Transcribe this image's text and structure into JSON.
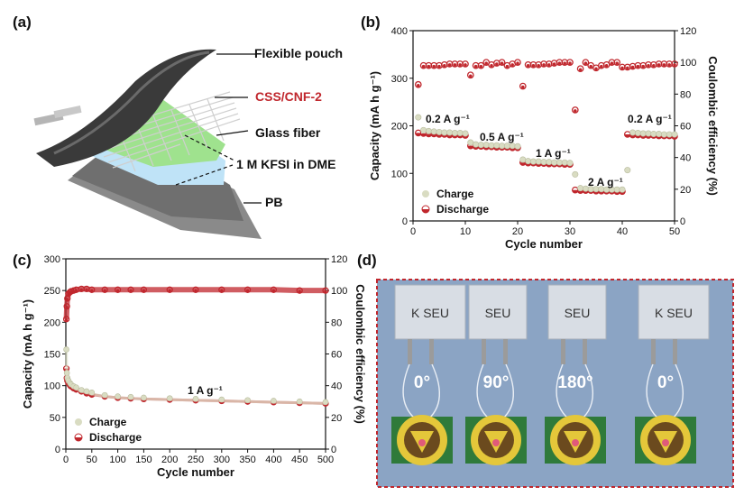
{
  "panels": {
    "a": {
      "letter": "(a)",
      "layers": [
        "Flexible pouch",
        "CSS/CNF-2",
        "Glass fiber",
        "1 M KFSI in DME",
        "PB"
      ]
    },
    "b": {
      "letter": "(b)"
    },
    "c": {
      "letter": "(c)"
    },
    "d": {
      "letter": "(d)",
      "photos": [
        {
          "handwriting": "K SEU",
          "angle": "0°"
        },
        {
          "handwriting": "SEU",
          "angle": "90°"
        },
        {
          "handwriting": "SEU",
          "angle": "180°"
        },
        {
          "handwriting": "K SEU",
          "angle": "0°"
        }
      ],
      "seal_text": "SOUTHEAST UNIVERSITY"
    }
  },
  "colors": {
    "discharge": "#c0272d",
    "charge": "#d9dcc2",
    "frame_dashed": "#c0272d",
    "text_red": "#c0272d"
  },
  "chart_data": [
    {
      "id": "b",
      "type": "scatter",
      "xlabel": "Cycle number",
      "ylabel": "Capacity (mA h g⁻¹)",
      "y2label": "Coulombic efficiency (%)",
      "xlim": [
        0,
        50
      ],
      "ylim": [
        0,
        400
      ],
      "y2lim": [
        0,
        120
      ],
      "xticks": [
        0,
        10,
        20,
        30,
        40,
        50
      ],
      "yticks": [
        0,
        100,
        200,
        300,
        400
      ],
      "y2ticks": [
        0,
        20,
        40,
        60,
        80,
        100,
        120
      ],
      "legend": [
        "Charge",
        "Discharge"
      ],
      "legend_position": "bottom-left",
      "annotations": [
        "0.2 A g⁻¹",
        "0.5 A g⁻¹",
        "1 A g⁻¹",
        "2 A g⁻¹",
        "0.2 A g⁻¹"
      ],
      "series": [
        {
          "name": "Discharge",
          "axis": "left",
          "x": [
            1,
            2,
            3,
            4,
            5,
            6,
            7,
            8,
            9,
            10,
            11,
            12,
            13,
            14,
            15,
            16,
            17,
            18,
            19,
            20,
            21,
            22,
            23,
            24,
            25,
            26,
            27,
            28,
            29,
            30,
            31,
            32,
            33,
            34,
            35,
            36,
            37,
            38,
            39,
            40,
            41,
            42,
            43,
            44,
            45,
            46,
            47,
            48,
            49,
            50
          ],
          "values": [
            185,
            184,
            183,
            183,
            182,
            182,
            181,
            181,
            181,
            180,
            158,
            157,
            157,
            156,
            156,
            155,
            155,
            155,
            154,
            154,
            123,
            122,
            122,
            121,
            121,
            120,
            120,
            120,
            119,
            119,
            65,
            64,
            64,
            64,
            63,
            63,
            63,
            63,
            62,
            62,
            182,
            181,
            181,
            180,
            180,
            180,
            179,
            179,
            179,
            178
          ]
        },
        {
          "name": "Charge",
          "axis": "left",
          "x": [
            1,
            2,
            3,
            4,
            5,
            6,
            7,
            8,
            9,
            10,
            11,
            12,
            13,
            14,
            15,
            16,
            17,
            18,
            19,
            20,
            21,
            22,
            23,
            24,
            25,
            26,
            27,
            28,
            29,
            30,
            31,
            32,
            33,
            34,
            35,
            36,
            37,
            38,
            39,
            40,
            41,
            42,
            43,
            44,
            45,
            46,
            47,
            48,
            49,
            50
          ],
          "values": [
            215,
            188,
            186,
            185,
            184,
            183,
            183,
            182,
            182,
            181,
            162,
            158,
            157,
            157,
            156,
            156,
            155,
            155,
            155,
            154,
            126,
            123,
            122,
            122,
            121,
            121,
            120,
            120,
            120,
            119,
            95,
            66,
            65,
            64,
            64,
            64,
            63,
            63,
            63,
            63,
            104,
            183,
            182,
            181,
            181,
            180,
            180,
            179,
            179,
            179
          ]
        },
        {
          "name": "Coulombic efficiency",
          "axis": "right",
          "x": [
            1,
            2,
            3,
            4,
            5,
            6,
            7,
            8,
            9,
            10,
            11,
            12,
            13,
            14,
            15,
            16,
            17,
            18,
            19,
            20,
            21,
            22,
            23,
            24,
            25,
            26,
            27,
            28,
            29,
            30,
            31,
            32,
            33,
            34,
            35,
            36,
            37,
            38,
            39,
            40,
            41,
            42,
            43,
            44,
            45,
            46,
            47,
            48,
            49,
            50
          ],
          "values": [
            86,
            98,
            98,
            98,
            98,
            98.5,
            99,
            99,
            99,
            99,
            92,
            98,
            98,
            100,
            98.5,
            99.5,
            100,
            98,
            99,
            100,
            85,
            98.5,
            98.5,
            98.5,
            99,
            99,
            99.5,
            100,
            100,
            100,
            70,
            96,
            100,
            98,
            96.5,
            98,
            98.5,
            100,
            100,
            97,
            97,
            97.5,
            98,
            98,
            98.5,
            98.5,
            99,
            99,
            99,
            99
          ]
        }
      ]
    },
    {
      "id": "c",
      "type": "scatter",
      "xlabel": "Cycle number",
      "ylabel": "Capacity (mA h g⁻¹)",
      "y2label": "Coulombic efficiency (%)",
      "xlim": [
        0,
        500
      ],
      "ylim": [
        0,
        300
      ],
      "y2lim": [
        0,
        120
      ],
      "xticks": [
        0,
        50,
        100,
        150,
        200,
        250,
        300,
        350,
        400,
        450,
        500
      ],
      "yticks": [
        0,
        50,
        100,
        150,
        200,
        250,
        300
      ],
      "y2ticks": [
        0,
        20,
        40,
        60,
        80,
        100,
        120
      ],
      "legend": [
        "Charge",
        "Discharge"
      ],
      "legend_position": "bottom-left",
      "annotations": [
        "1 A g⁻¹"
      ],
      "series": [
        {
          "name": "Discharge",
          "axis": "left",
          "x": [
            1,
            2,
            3,
            5,
            8,
            10,
            15,
            20,
            30,
            40,
            50,
            75,
            100,
            125,
            150,
            200,
            250,
            300,
            350,
            400,
            450,
            500
          ],
          "values": [
            127,
            112,
            108,
            104,
            101,
            99,
            96,
            94,
            91,
            88,
            86,
            83,
            81,
            80,
            79,
            78,
            77,
            76,
            75,
            74,
            73,
            72
          ]
        },
        {
          "name": "Charge",
          "axis": "left",
          "x": [
            1,
            2,
            3,
            5,
            8,
            10,
            15,
            20,
            30,
            40,
            50,
            75,
            100,
            125,
            150,
            200,
            250,
            300,
            350,
            400,
            450,
            500
          ],
          "values": [
            155,
            118,
            110,
            106,
            102,
            100,
            97,
            95,
            91,
            89,
            87,
            83,
            81,
            80,
            79,
            78,
            77,
            76,
            75,
            74,
            73,
            72
          ]
        },
        {
          "name": "Coulombic efficiency",
          "axis": "right",
          "x": [
            1,
            2,
            3,
            5,
            8,
            10,
            15,
            20,
            30,
            40,
            50,
            75,
            100,
            125,
            150,
            200,
            250,
            300,
            350,
            400,
            450,
            500
          ],
          "values": [
            82,
            90,
            95,
            98,
            99,
            99.5,
            100,
            100.5,
            101,
            101,
            100.5,
            100.5,
            100.5,
            100.5,
            100.5,
            100.5,
            100.5,
            100.5,
            100.5,
            100.5,
            100,
            100
          ]
        }
      ]
    }
  ]
}
